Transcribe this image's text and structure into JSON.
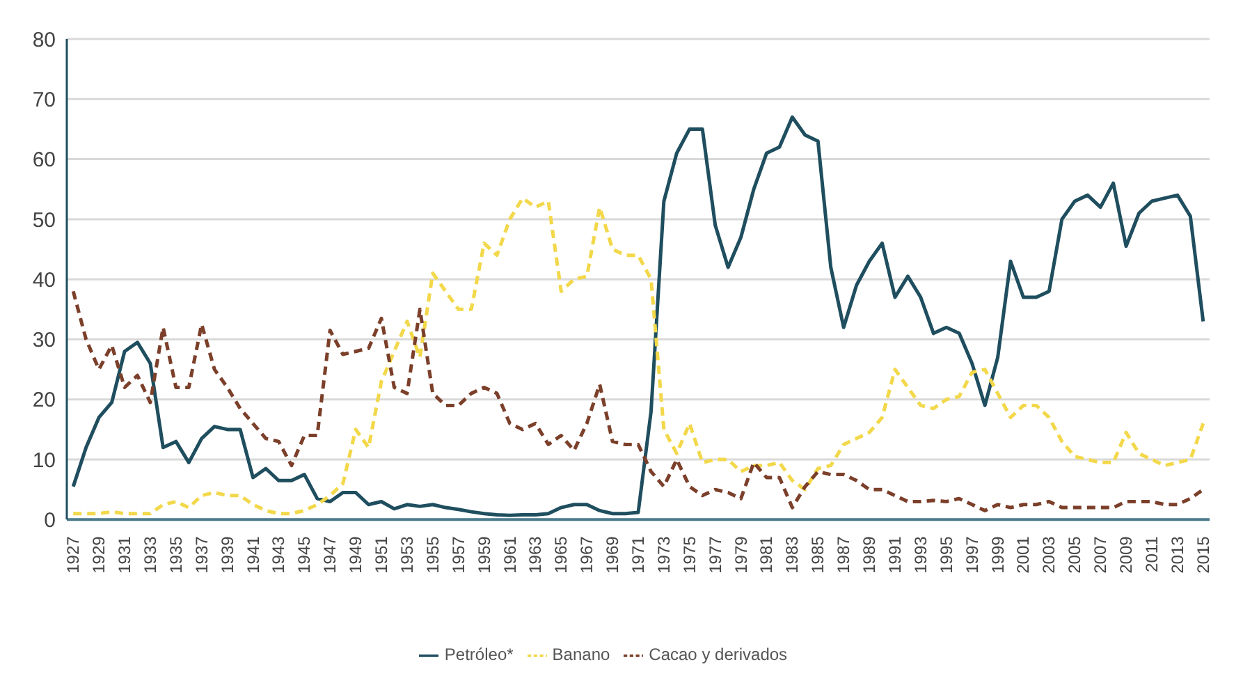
{
  "chart_data": {
    "type": "line",
    "categories": [
      "1927",
      null,
      "1929",
      null,
      "1931",
      null,
      "1933",
      null,
      "1935",
      null,
      "1937",
      null,
      "1939",
      null,
      "1941",
      null,
      "1943",
      null,
      "1945",
      null,
      "1947",
      null,
      "1949",
      null,
      "1951",
      null,
      "1953",
      null,
      "1955",
      null,
      "1957",
      null,
      "1959",
      null,
      "1961",
      null,
      "1963",
      null,
      "1965",
      null,
      "1967",
      null,
      "1969",
      null,
      "1971",
      null,
      "1973",
      null,
      "1975",
      null,
      "1977",
      null,
      "1979",
      null,
      "1981",
      null,
      "1983",
      null,
      "1985",
      null,
      "1987",
      null,
      "1989",
      null,
      "1991",
      null,
      "1993",
      null,
      "1995",
      null,
      "1997",
      null,
      "1999",
      null,
      "2001",
      null,
      "2003",
      null,
      "2005",
      null,
      "2007",
      null,
      "2009",
      null,
      "2011",
      null,
      "2013",
      null,
      "2015"
    ],
    "series": [
      {
        "name": "Petróleo*",
        "color": "#1f4e5f",
        "line_style": "solid",
        "values": [
          5.5,
          12,
          17,
          19.5,
          28,
          29.5,
          26,
          12,
          13,
          9.5,
          13.5,
          15.5,
          15,
          15,
          7,
          8.5,
          6.5,
          6.5,
          7.5,
          3.5,
          3,
          4.5,
          4.5,
          2.5,
          3,
          1.8,
          2.5,
          2.2,
          2.5,
          2,
          1.7,
          1.3,
          1,
          0.8,
          0.7,
          0.8,
          0.8,
          1,
          2,
          2.5,
          2.5,
          1.5,
          1,
          1,
          1.2,
          18,
          53,
          61,
          65,
          65,
          49,
          42,
          47,
          55,
          61,
          62,
          67,
          64,
          63,
          42,
          32,
          39,
          43,
          46,
          37,
          40.5,
          37,
          31,
          32,
          31,
          26,
          19,
          27,
          43,
          37,
          37,
          38,
          50,
          53,
          54,
          52,
          56,
          45.5,
          51,
          53,
          53.5,
          54,
          50.5,
          33
        ]
      },
      {
        "name": "Banano",
        "color": "#f2d84a",
        "line_style": "dashed",
        "values": [
          1,
          1,
          1,
          1.3,
          1,
          1,
          1,
          2.5,
          3,
          2,
          4,
          4.5,
          4,
          4,
          2.5,
          1.5,
          1,
          1,
          1.5,
          2.5,
          4,
          6,
          15,
          12,
          23,
          28,
          33,
          27,
          41,
          38,
          35,
          35,
          46,
          44,
          50,
          53.5,
          52,
          53,
          38,
          40,
          40.5,
          52,
          45,
          44,
          44,
          40,
          15,
          11,
          16,
          9.5,
          10,
          10,
          8,
          9,
          9,
          9.5,
          6.5,
          5,
          8.5,
          9,
          12.5,
          13.5,
          14.5,
          17,
          25,
          22,
          19,
          18.5,
          20,
          20.5,
          24.5,
          25,
          21,
          17,
          19,
          19,
          17,
          13,
          10.5,
          10,
          9.5,
          9.5,
          14.5,
          11,
          10,
          9,
          9.5,
          10,
          16
        ]
      },
      {
        "name": "Cacao y derivados",
        "color": "#7b3f2a",
        "line_style": "dashed",
        "values": [
          38,
          30,
          25,
          29,
          22,
          24,
          19.5,
          32,
          22,
          22,
          32.5,
          25,
          22,
          18.5,
          16,
          13.5,
          13,
          9,
          14,
          14,
          31.5,
          27.5,
          28,
          28.5,
          33.5,
          22,
          21,
          35,
          21,
          19,
          19,
          21,
          22,
          21,
          16,
          15,
          16,
          12.5,
          14,
          11.5,
          16,
          22.5,
          13,
          12.5,
          12.5,
          8,
          5.5,
          10,
          5.5,
          4,
          5,
          4.5,
          3.5,
          9.5,
          7,
          7,
          2,
          5.5,
          8,
          7.5,
          7.5,
          6.5,
          5,
          5,
          4,
          3,
          3,
          3.2,
          3,
          3.5,
          2.5,
          1.5,
          2.5,
          2,
          2.5,
          2.5,
          3,
          2,
          2,
          2,
          2,
          2,
          3,
          3,
          3,
          2.5,
          2.5,
          3.5,
          5
        ]
      }
    ],
    "ylim": [
      0,
      80
    ],
    "yticks": [
      0,
      10,
      20,
      30,
      40,
      50,
      60,
      70,
      80
    ],
    "grid": "y",
    "legend": "bottom",
    "marker": "none"
  }
}
